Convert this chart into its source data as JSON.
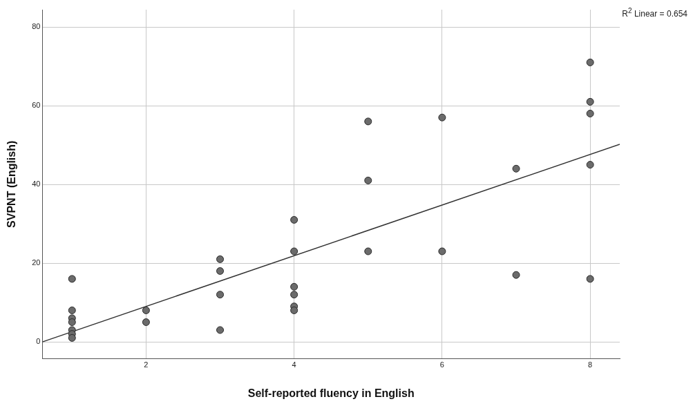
{
  "chart_data": {
    "type": "scatter",
    "xlabel": "Self-reported fluency in English",
    "ylabel": "SVPNT (English)",
    "annotations": [
      "R$^{2}$ Linear = 0.654"
    ],
    "series": [
      {
        "color": "#6b6b6b",
        "marker": "circle",
        "x": [
          1,
          1,
          1,
          1,
          1,
          1,
          1,
          2,
          2,
          3,
          3,
          3,
          3,
          4,
          4,
          4,
          4,
          4,
          4,
          5,
          5,
          5,
          6,
          6,
          7,
          7,
          8,
          8,
          8,
          8,
          8
        ],
        "values": [
          16,
          8,
          6,
          5,
          3,
          2,
          1,
          8,
          5,
          21,
          18,
          12,
          3,
          31,
          23,
          14,
          12,
          9,
          8,
          56,
          41,
          23,
          57,
          23,
          44,
          17,
          71,
          61,
          58,
          45,
          16
        ]
      },
      {
        "type": "line",
        "color": "#333333",
        "marker": "none",
        "x": [
          0.6,
          8.4
        ],
        "values": [
          0,
          50.2
        ]
      }
    ],
    "xlim": [
      0.6,
      8.4
    ],
    "xticks": [
      2,
      4,
      6,
      8
    ],
    "ylim": [
      -4.3,
      84.4
    ],
    "yticks": [
      0,
      20,
      40,
      60,
      80
    ],
    "grid": true,
    "legend": false
  }
}
